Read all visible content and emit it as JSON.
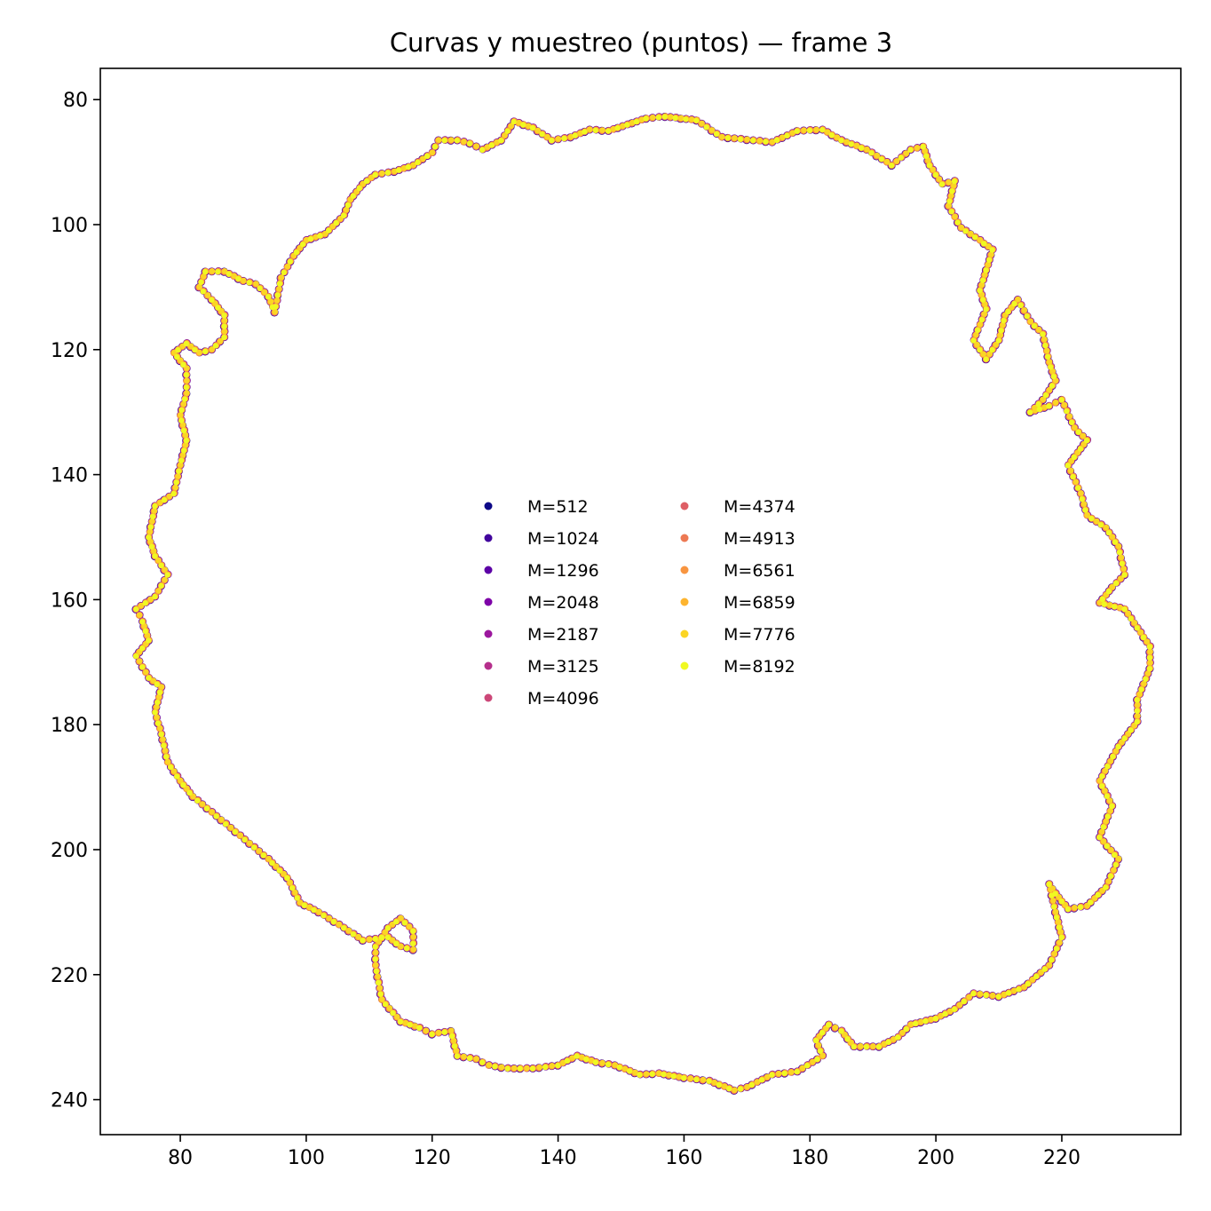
{
  "chart_data": {
    "type": "scatter",
    "title": "Curvas y muestreo (puntos) — frame 3",
    "xlabel": "",
    "ylabel": "",
    "xlim": [
      67.3,
      238.9
    ],
    "ylim": [
      245.6,
      75.0
    ],
    "y_inverted": true,
    "grid": false,
    "legend_placement": "center",
    "legend_columns": 2,
    "x_ticks": [
      80,
      100,
      120,
      140,
      160,
      180,
      200,
      220
    ],
    "y_ticks": [
      80,
      100,
      120,
      140,
      160,
      180,
      200,
      220,
      240
    ],
    "curve": {
      "color": "#e8a33a",
      "points": [
        [
          157,
          82.7
        ],
        [
          162,
          83.3
        ],
        [
          166,
          86.0
        ],
        [
          170,
          86.4
        ],
        [
          174,
          86.8
        ],
        [
          178,
          85.0
        ],
        [
          182,
          84.8
        ],
        [
          185,
          86.5
        ],
        [
          189,
          88.0
        ],
        [
          193,
          90.5
        ],
        [
          196,
          88.0
        ],
        [
          198,
          87.5
        ],
        [
          199,
          90.5
        ],
        [
          201,
          93.5
        ],
        [
          203,
          93.0
        ],
        [
          202,
          97.0
        ],
        [
          204,
          100.5
        ],
        [
          207,
          102.5
        ],
        [
          209,
          104.0
        ],
        [
          207,
          110.5
        ],
        [
          208,
          113.5
        ],
        [
          206,
          118.5
        ],
        [
          208,
          121.5
        ],
        [
          210,
          118.5
        ],
        [
          211,
          114.5
        ],
        [
          213,
          112.0
        ],
        [
          215,
          115.5
        ],
        [
          217,
          117.5
        ],
        [
          218,
          122.0
        ],
        [
          219,
          125.0
        ],
        [
          217,
          128.0
        ],
        [
          215,
          130.0
        ],
        [
          218,
          129.0
        ],
        [
          220,
          128.0
        ],
        [
          222,
          132.5
        ],
        [
          224,
          134.5
        ],
        [
          221,
          138.5
        ],
        [
          223,
          143.0
        ],
        [
          224,
          146.5
        ],
        [
          227,
          148.5
        ],
        [
          229,
          151.5
        ],
        [
          230,
          156.0
        ],
        [
          228,
          158.0
        ],
        [
          226,
          160.5
        ],
        [
          230,
          161.5
        ],
        [
          232,
          164.5
        ],
        [
          234,
          167.5
        ],
        [
          234,
          171.0
        ],
        [
          232,
          176.0
        ],
        [
          232,
          179.5
        ],
        [
          229,
          183.5
        ],
        [
          226,
          189.0
        ],
        [
          228,
          193.0
        ],
        [
          226,
          198.0
        ],
        [
          229,
          201.5
        ],
        [
          227,
          206.0
        ],
        [
          224,
          209.0
        ],
        [
          221,
          209.5
        ],
        [
          219,
          207.0
        ],
        [
          218,
          205.5
        ],
        [
          219,
          210.0
        ],
        [
          220,
          214.0
        ],
        [
          218,
          218.5
        ],
        [
          214,
          222.0
        ],
        [
          210,
          223.5
        ],
        [
          206,
          223.0
        ],
        [
          203,
          225.5
        ],
        [
          200,
          227.0
        ],
        [
          196,
          228.0
        ],
        [
          194,
          230.0
        ],
        [
          191,
          231.5
        ],
        [
          187,
          231.5
        ],
        [
          185,
          229.0
        ],
        [
          183,
          228.0
        ],
        [
          181,
          230.5
        ],
        [
          182,
          233.0
        ],
        [
          178,
          235.5
        ],
        [
          174,
          236.0
        ],
        [
          170,
          238.0
        ],
        [
          168,
          238.5
        ],
        [
          164,
          237.0
        ],
        [
          160,
          236.5
        ],
        [
          156,
          235.8
        ],
        [
          153,
          236.0
        ],
        [
          149,
          234.5
        ],
        [
          146,
          234.0
        ],
        [
          143,
          233.0
        ],
        [
          140,
          234.5
        ],
        [
          136,
          235.0
        ],
        [
          132,
          235.0
        ],
        [
          129,
          234.5
        ],
        [
          127,
          233.5
        ],
        [
          124,
          233.0
        ],
        [
          123,
          229.0
        ],
        [
          120,
          229.5
        ],
        [
          118,
          228.5
        ],
        [
          115,
          227.5
        ],
        [
          112,
          224.0
        ],
        [
          111,
          218.5
        ],
        [
          111,
          215.5
        ],
        [
          113,
          212.5
        ],
        [
          115,
          211.0
        ],
        [
          117,
          213.0
        ],
        [
          117,
          216.0
        ],
        [
          115,
          215.5
        ],
        [
          113,
          214.0
        ],
        [
          109,
          214.5
        ],
        [
          106,
          212.5
        ],
        [
          102,
          210.0
        ],
        [
          99,
          208.5
        ],
        [
          97,
          204.5
        ],
        [
          94,
          201.5
        ],
        [
          91,
          199.0
        ],
        [
          88,
          196.5
        ],
        [
          85,
          194.0
        ],
        [
          82,
          191.5
        ],
        [
          80,
          189.0
        ],
        [
          78,
          186.0
        ],
        [
          77,
          181.5
        ],
        [
          76,
          178.0
        ],
        [
          77,
          174.0
        ],
        [
          75,
          172.5
        ],
        [
          73,
          169.0
        ],
        [
          75,
          166.5
        ],
        [
          74,
          163.5
        ],
        [
          73,
          161.5
        ],
        [
          76,
          159.5
        ],
        [
          78,
          156.0
        ],
        [
          76,
          153.0
        ],
        [
          75,
          150.0
        ],
        [
          76,
          145.0
        ],
        [
          79,
          143.0
        ],
        [
          80,
          138.5
        ],
        [
          81,
          134.5
        ],
        [
          80,
          130.5
        ],
        [
          81,
          127.0
        ],
        [
          81,
          123.0
        ],
        [
          79,
          120.5
        ],
        [
          81,
          119.0
        ],
        [
          83,
          120.5
        ],
        [
          85,
          120.0
        ],
        [
          87,
          118.0
        ],
        [
          87,
          114.5
        ],
        [
          85,
          112.0
        ],
        [
          83,
          110.0
        ],
        [
          84,
          107.5
        ],
        [
          87,
          107.5
        ],
        [
          90,
          109.0
        ],
        [
          92,
          109.5
        ],
        [
          94,
          111.5
        ],
        [
          95,
          114.0
        ],
        [
          96,
          108.5
        ],
        [
          98,
          105.0
        ],
        [
          100,
          102.5
        ],
        [
          103,
          101.5
        ],
        [
          106,
          98.5
        ],
        [
          107,
          96.0
        ],
        [
          109,
          93.5
        ],
        [
          111,
          92.0
        ],
        [
          114,
          91.5
        ],
        [
          117,
          90.5
        ],
        [
          120,
          88.5
        ],
        [
          121,
          86.5
        ],
        [
          124,
          86.5
        ],
        [
          126,
          87.0
        ],
        [
          128,
          88.0
        ],
        [
          131,
          86.5
        ],
        [
          133,
          83.5
        ],
        [
          136,
          84.5
        ],
        [
          139,
          86.5
        ],
        [
          142,
          86.0
        ],
        [
          145,
          84.8
        ],
        [
          148,
          85.0
        ],
        [
          151,
          84.0
        ],
        [
          154,
          83.0
        ],
        [
          157,
          82.7
        ]
      ]
    },
    "series": [
      {
        "name": "M=512",
        "color": "#0d0887"
      },
      {
        "name": "M=1024",
        "color": "#41049d"
      },
      {
        "name": "M=1296",
        "color": "#5c01a6"
      },
      {
        "name": "M=2048",
        "color": "#7e03a8"
      },
      {
        "name": "M=2187",
        "color": "#9c179e"
      },
      {
        "name": "M=3125",
        "color": "#b52f8c"
      },
      {
        "name": "M=4096",
        "color": "#cc4778"
      },
      {
        "name": "M=4374",
        "color": "#de5f65"
      },
      {
        "name": "M=4913",
        "color": "#ed7953"
      },
      {
        "name": "M=6561",
        "color": "#f89540"
      },
      {
        "name": "M=6859",
        "color": "#fdb42f"
      },
      {
        "name": "M=7776",
        "color": "#fbd524"
      },
      {
        "name": "M=8192",
        "color": "#f0f921"
      }
    ]
  }
}
